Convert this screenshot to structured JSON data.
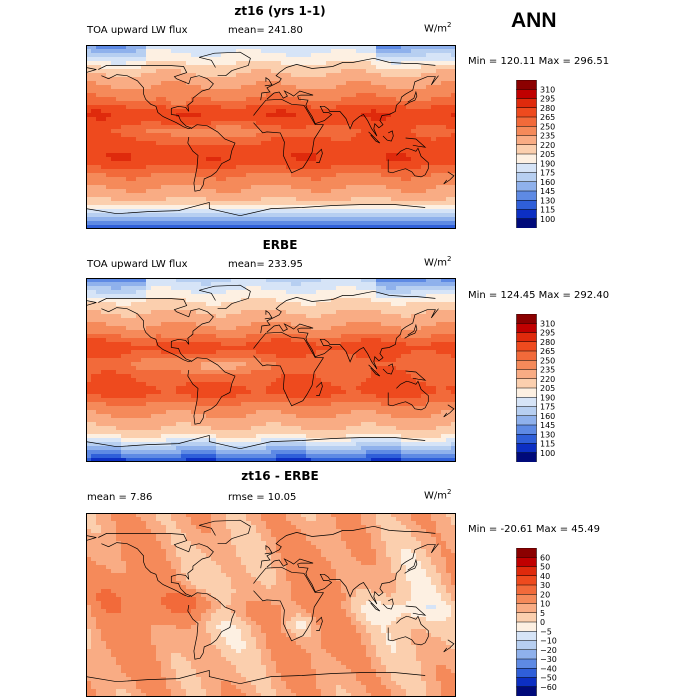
{
  "page": {
    "season": "ANN",
    "background": "#ffffff"
  },
  "chart_data": [
    {
      "type": "heatmap",
      "title": "zt16 (yrs 1-1)",
      "left_label": "TOA upward LW flux",
      "center_label": "mean=  241.80",
      "units": "W/m",
      "units_exp": "2",
      "minmax_label": "Min = 120.11  Max = 296.51",
      "field": "toa_lw",
      "levels": [
        "310",
        "295",
        "280",
        "265",
        "250",
        "235",
        "220",
        "205",
        "190",
        "175",
        "160",
        "145",
        "130",
        "115",
        "100"
      ],
      "colors": [
        "#8b0000",
        "#c00000",
        "#df2a0c",
        "#ee4a1e",
        "#f26a3a",
        "#f58a5a",
        "#f9ac84",
        "#fbcfae",
        "#fdf0e2",
        "#d6e4f7",
        "#b7cff1",
        "#8fb1ec",
        "#5e8ae4",
        "#2f5fd9",
        "#0c2fc3",
        "#000a7a"
      ],
      "map_colors": [
        "#000a7a",
        "#0c2fc3",
        "#2f5fd9",
        "#5e8ae4",
        "#8fb1ec",
        "#b7cff1",
        "#d6e4f7",
        "#fdf0e2",
        "#fbcfae",
        "#f9ac84",
        "#f58a5a",
        "#f26a3a",
        "#ee4a1e",
        "#df2a0c",
        "#c00000",
        "#8b0000"
      ]
    },
    {
      "type": "heatmap",
      "title": "ERBE",
      "left_label": "TOA upward LW flux",
      "center_label": "mean= 233.95",
      "units": "W/m",
      "units_exp": "2",
      "minmax_label": "Min = 124.45  Max = 292.40",
      "field": "toa_lw_obs",
      "levels": [
        "310",
        "295",
        "280",
        "265",
        "250",
        "235",
        "220",
        "205",
        "190",
        "175",
        "160",
        "145",
        "130",
        "115",
        "100"
      ],
      "colors": [
        "#8b0000",
        "#c00000",
        "#df2a0c",
        "#ee4a1e",
        "#f26a3a",
        "#f58a5a",
        "#f9ac84",
        "#fbcfae",
        "#fdf0e2",
        "#d6e4f7",
        "#b7cff1",
        "#8fb1ec",
        "#5e8ae4",
        "#2f5fd9",
        "#0c2fc3",
        "#000a7a"
      ],
      "map_colors": [
        "#000a7a",
        "#0c2fc3",
        "#2f5fd9",
        "#5e8ae4",
        "#8fb1ec",
        "#b7cff1",
        "#d6e4f7",
        "#fdf0e2",
        "#fbcfae",
        "#f9ac84",
        "#f58a5a",
        "#f26a3a",
        "#ee4a1e",
        "#df2a0c",
        "#c00000",
        "#8b0000"
      ]
    },
    {
      "type": "heatmap",
      "title": "zt16 - ERBE",
      "left_label": "mean =    7.86",
      "center_label": "rmse =   10.05",
      "units": "W/m",
      "units_exp": "2",
      "minmax_label": "Min = -20.61  Max =   45.49",
      "field": "diff",
      "levels": [
        "60",
        "50",
        "40",
        "30",
        "20",
        "10",
        "5",
        "0",
        "−5",
        "−10",
        "−20",
        "−30",
        "−40",
        "−50",
        "−60"
      ],
      "colors": [
        "#8b0000",
        "#c00000",
        "#df2a0c",
        "#ee4a1e",
        "#f26a3a",
        "#f58a5a",
        "#f9ac84",
        "#fbcfae",
        "#fdf0e2",
        "#d6e4f7",
        "#b7cff1",
        "#8fb1ec",
        "#5e8ae4",
        "#2f5fd9",
        "#0c2fc3",
        "#000a7a"
      ],
      "map_colors": [
        "#000a7a",
        "#0c2fc3",
        "#2f5fd9",
        "#5e8ae4",
        "#8fb1ec",
        "#b7cff1",
        "#d6e4f7",
        "#fdf0e2",
        "#fbcfae",
        "#f9ac84",
        "#f58a5a",
        "#f26a3a",
        "#ee4a1e",
        "#df2a0c",
        "#c00000",
        "#8b0000"
      ]
    }
  ]
}
